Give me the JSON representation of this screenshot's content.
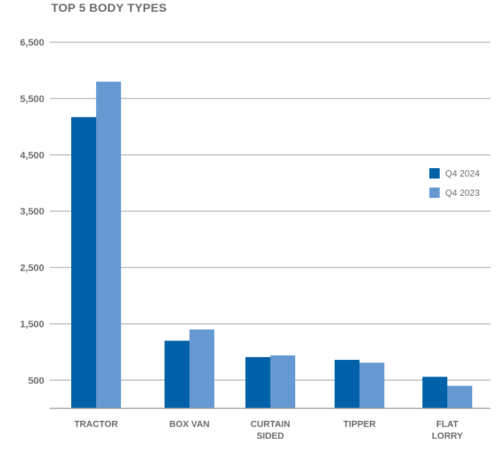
{
  "colors": {
    "gridline": "#b3b3b3",
    "axis": "#999999",
    "text": "#6b6b6b"
  },
  "chart_data": {
    "type": "bar",
    "title": "TOP 5 BODY TYPES",
    "categories": [
      [
        "TRACTOR"
      ],
      [
        "BOX VAN"
      ],
      [
        "CURTAIN",
        "SIDED"
      ],
      [
        "TIPPER"
      ],
      [
        "FLAT",
        "LORRY"
      ]
    ],
    "series": [
      {
        "name": "Q4 2024",
        "color": "#0060a8",
        "values": [
          5170,
          1200,
          910,
          860,
          560
        ]
      },
      {
        "name": "Q4 2023",
        "color": "#6699d2",
        "values": [
          5800,
          1400,
          940,
          810,
          400
        ]
      }
    ],
    "yticks": [
      500,
      1500,
      2500,
      3500,
      4500,
      5500,
      6500
    ],
    "ytick_labels": [
      "500",
      "1,500",
      "2,500",
      "3,500",
      "4,500",
      "5,500",
      "6,500"
    ],
    "ylim": [
      0,
      6500
    ],
    "grid": true,
    "legend_position": "right"
  }
}
